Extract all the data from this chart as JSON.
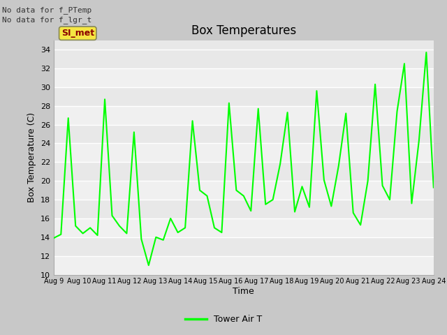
{
  "title": "Box Temperatures",
  "xlabel": "Time",
  "ylabel": "Box Temperature (C)",
  "ylim": [
    10,
    35
  ],
  "yticks": [
    10,
    12,
    14,
    16,
    18,
    20,
    22,
    24,
    26,
    28,
    30,
    32,
    34
  ],
  "line_color": "#00ff00",
  "line_width": 1.5,
  "bg_color": "#e8e8e8",
  "no_data_text1": "No data for f_PTemp",
  "no_data_text2": "No data for f_lgr_t",
  "si_met_label": "SI_met",
  "legend_label": "Tower Air T",
  "x_labels": [
    "Aug 9",
    "Aug 10",
    "Aug 11",
    "Aug 12",
    "Aug 13",
    "Aug 14",
    "Aug 15",
    "Aug 16",
    "Aug 17",
    "Aug 18",
    "Aug 19",
    "Aug 20",
    "Aug 21",
    "Aug 22",
    "Aug 23",
    "Aug 24"
  ],
  "fig_bg": "#c8c8c8",
  "y_data": [
    13.9,
    14.3,
    26.7,
    15.2,
    14.4,
    15.0,
    14.2,
    28.7,
    16.3,
    15.2,
    14.4,
    25.2,
    13.8,
    11.0,
    14.0,
    13.7,
    16.0,
    14.5,
    15.0,
    26.4,
    19.0,
    18.4,
    15.0,
    14.5,
    28.3,
    19.0,
    18.4,
    16.8,
    27.7,
    17.5,
    18.0,
    21.8,
    27.3,
    16.7,
    19.4,
    17.2,
    29.6,
    20.1,
    17.3,
    21.6,
    27.2,
    16.6,
    15.3,
    20.0,
    30.3,
    19.5,
    18.0,
    27.4,
    32.5,
    17.6,
    24.3,
    33.7,
    19.3
  ]
}
